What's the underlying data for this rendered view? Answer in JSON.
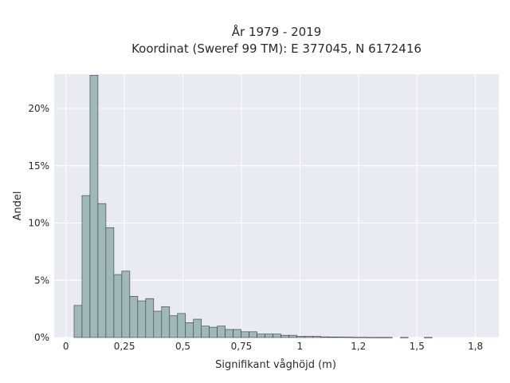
{
  "chart_data": {
    "type": "bar",
    "title_line1": "År 1979 - 2019",
    "title_line2": "Koordinat (Sweref 99 TM): E 377045, N 6172416",
    "xlabel": "Signifikant våghöjd (m)",
    "ylabel": "Andel",
    "xlim": [
      -0.05,
      1.85
    ],
    "ylim": [
      0,
      0.23
    ],
    "grid": true,
    "bin_width": 0.034,
    "bins_start": 0.035,
    "values": [
      0.028,
      0.124,
      0.229,
      0.117,
      0.096,
      0.055,
      0.058,
      0.036,
      0.032,
      0.034,
      0.023,
      0.027,
      0.019,
      0.021,
      0.013,
      0.016,
      0.01,
      0.009,
      0.01,
      0.007,
      0.007,
      0.005,
      0.005,
      0.003,
      0.003,
      0.003,
      0.002,
      0.002,
      0.001,
      0.001,
      0.001,
      0.0006,
      0.0005,
      0.0004,
      0.0003,
      0.0002,
      0.0002,
      0.0001,
      0.0001,
      0.0001,
      0.0,
      0.0001,
      0.0,
      0.0,
      0.0001
    ],
    "x_ticks": [
      {
        "value": 0,
        "label": "0"
      },
      {
        "value": 0.25,
        "label": "0,25"
      },
      {
        "value": 0.5,
        "label": "0,5"
      },
      {
        "value": 0.75,
        "label": "0,75"
      },
      {
        "value": 1.0,
        "label": "1"
      },
      {
        "value": 1.25,
        "label": "1,2"
      },
      {
        "value": 1.5,
        "label": "1,5"
      },
      {
        "value": 1.75,
        "label": "1,8"
      }
    ],
    "y_ticks": [
      {
        "value": 0,
        "label": "0%"
      },
      {
        "value": 0.05,
        "label": "5%"
      },
      {
        "value": 0.1,
        "label": "10%"
      },
      {
        "value": 0.15,
        "label": "15%"
      },
      {
        "value": 0.2,
        "label": "20%"
      }
    ],
    "colors": {
      "plot_background": "#eaeaf2",
      "grid": "#ffffff",
      "bar_fill": "#9fb8b8",
      "bar_stroke": "#3a3a3a"
    }
  }
}
